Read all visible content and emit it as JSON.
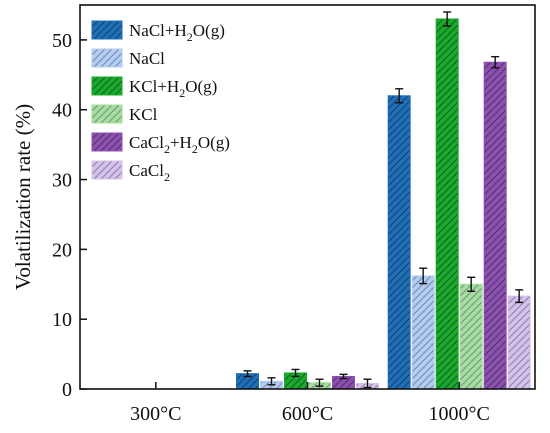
{
  "chart_data": {
    "type": "bar",
    "title": "",
    "xlabel": "",
    "ylabel": "Volatilization rate (%)",
    "ylim": [
      0,
      55
    ],
    "yticks": [
      0,
      10,
      20,
      30,
      40,
      50
    ],
    "categories": [
      "300°C",
      "600°C",
      "1000°C"
    ],
    "series": [
      {
        "name": "NaCl+H2O(g)",
        "label": {
          "pre": "NaCl+H",
          "sub": "2",
          "post": "O(g)"
        },
        "color": "#1f6fb8",
        "solid": true,
        "values": [
          0,
          2.2,
          42.0
        ],
        "errors": [
          0,
          0.4,
          1.0
        ]
      },
      {
        "name": "NaCl",
        "label": {
          "pre": "NaCl",
          "sub": "",
          "post": ""
        },
        "color": "#b3cdf0",
        "solid": false,
        "values": [
          0,
          1.1,
          16.2
        ],
        "errors": [
          0,
          0.5,
          1.1
        ]
      },
      {
        "name": "KCl+H2O(g)",
        "label": {
          "pre": "KCl+H",
          "sub": "2",
          "post": "O(g)"
        },
        "color": "#1aaa2a",
        "solid": true,
        "values": [
          0,
          2.3,
          53.0
        ],
        "errors": [
          0,
          0.5,
          1.0
        ]
      },
      {
        "name": "KCl",
        "label": {
          "pre": "KCl",
          "sub": "",
          "post": ""
        },
        "color": "#a6df9a",
        "solid": false,
        "values": [
          0,
          0.9,
          15.0
        ],
        "errors": [
          0,
          0.5,
          1.0
        ]
      },
      {
        "name": "CaCl2+H2O(g)",
        "label": {
          "pre": "CaCl",
          "sub": "2",
          "post": "+H2O(g)"
        },
        "color": "#8e4fb0",
        "solid": true,
        "values": [
          0,
          1.8,
          46.8
        ],
        "errors": [
          0,
          0.3,
          0.8
        ]
      },
      {
        "name": "CaCl2",
        "label": {
          "pre": "CaCl",
          "sub": "2",
          "post": ""
        },
        "color": "#d7c1e8",
        "solid": false,
        "values": [
          0,
          0.8,
          13.3
        ],
        "errors": [
          0,
          0.6,
          0.9
        ]
      }
    ],
    "legend_position": "top-left",
    "grid": false,
    "error_bars": true
  }
}
